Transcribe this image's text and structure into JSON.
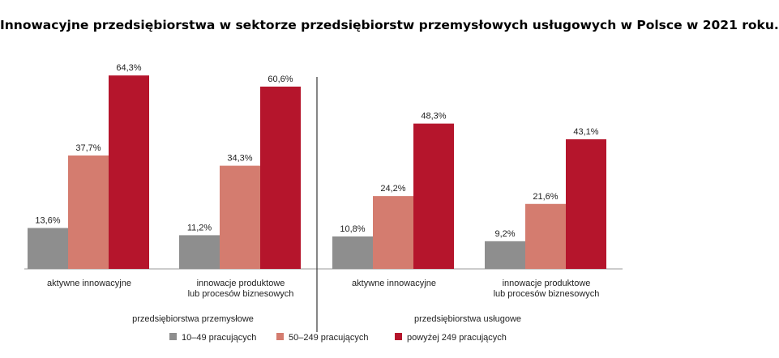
{
  "title": "Innowacyjne przedsiębiorstwa w sektorze przedsiębiorstw przemysłowych usługowych w Polsce w 2021 roku.",
  "colors": {
    "s1": "#8e8e8e",
    "s2": "#d47c6f",
    "s3": "#b5152c",
    "divider": "#444444",
    "axis": "#999999"
  },
  "chart_data": {
    "type": "bar",
    "title": "Innowacyjne przedsiębiorstwa w sektorze przedsiębiorstw przemysłowych usługowych w Polsce w 2021 roku.",
    "ylim": [
      0,
      70
    ],
    "grid": false,
    "legend_position": "bottom",
    "groups": [
      {
        "label": "przedsiębiorstwa przemysłowe",
        "categories": [
          "aktywne innowacyjne",
          "innowacje produktowe\nlub procesów biznesowych"
        ]
      },
      {
        "label": "przedsiębiorstwa usługowe",
        "categories": [
          "aktywne innowacyjne",
          "innowacje produktowe\nlub procesów biznesowych"
        ]
      }
    ],
    "series": [
      {
        "name": "10–49 pracujących",
        "values": [
          13.6,
          11.2,
          10.8,
          9.2
        ],
        "labels": [
          "13,6%",
          "11,2%",
          "10,8%",
          "9,2%"
        ]
      },
      {
        "name": "50–249 pracujących",
        "values": [
          37.7,
          34.3,
          24.2,
          21.6
        ],
        "labels": [
          "37,7%",
          "34,3%",
          "24,2%",
          "21,6%"
        ]
      },
      {
        "name": "powyżej 249 pracujących",
        "values": [
          64.3,
          60.6,
          48.3,
          43.1
        ],
        "labels": [
          "64,3%",
          "60,6%",
          "48,3%",
          "43,1%"
        ]
      }
    ]
  }
}
